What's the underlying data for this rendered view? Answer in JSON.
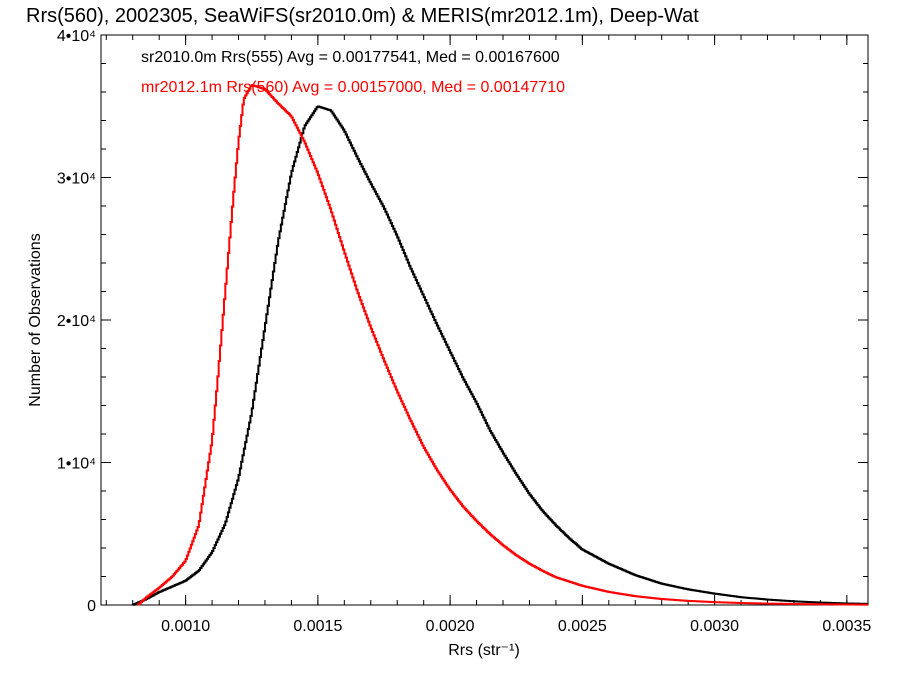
{
  "chart_data": {
    "type": "line",
    "title": "Rrs(560), 2002305, SeaWiFS(sr2010.0m) & MERIS(mr2012.1m), Deep-Wat",
    "xlabel": "Rrs (str⁻¹)",
    "ylabel": "Number of Observations",
    "xlim": [
      0.00068,
      0.00358
    ],
    "ylim": [
      0,
      40000
    ],
    "x_ticks": [
      0.001,
      0.0015,
      0.002,
      0.0025,
      0.003,
      0.0035
    ],
    "x_tick_labels": [
      "0.0010",
      "0.0015",
      "0.0020",
      "0.0025",
      "0.0030",
      "0.0035"
    ],
    "y_ticks": [
      0,
      10000,
      20000,
      30000,
      40000
    ],
    "y_tick_labels": [
      "0",
      "1•10⁴",
      "2•10⁴",
      "3•10⁴",
      "4•10⁴"
    ],
    "grid": false,
    "legend_position": "top-left",
    "series": [
      {
        "name": "sr2010.0m Rrs(555) Avg = 0.00177541, Med = 0.00167600",
        "color": "#000000",
        "points": [
          [
            0.0008,
            0
          ],
          [
            0.00085,
            400
          ],
          [
            0.0009,
            900
          ],
          [
            0.00095,
            1300
          ],
          [
            0.001,
            1700
          ],
          [
            0.00105,
            2400
          ],
          [
            0.0011,
            3700
          ],
          [
            0.00115,
            5700
          ],
          [
            0.0012,
            8900
          ],
          [
            0.00125,
            13500
          ],
          [
            0.0013,
            19500
          ],
          [
            0.00135,
            25500
          ],
          [
            0.0014,
            30300
          ],
          [
            0.00145,
            33600
          ],
          [
            0.0015,
            35000
          ],
          [
            0.00155,
            34700
          ],
          [
            0.0016,
            33300
          ],
          [
            0.00165,
            31400
          ],
          [
            0.0017,
            29600
          ],
          [
            0.00175,
            27900
          ],
          [
            0.0018,
            25900
          ],
          [
            0.00185,
            23700
          ],
          [
            0.0019,
            21700
          ],
          [
            0.00195,
            19700
          ],
          [
            0.002,
            17800
          ],
          [
            0.00205,
            15900
          ],
          [
            0.0021,
            14200
          ],
          [
            0.00215,
            12300
          ],
          [
            0.0022,
            10700
          ],
          [
            0.00225,
            9200
          ],
          [
            0.0023,
            7800
          ],
          [
            0.00235,
            6600
          ],
          [
            0.0024,
            5600
          ],
          [
            0.00245,
            4700
          ],
          [
            0.0025,
            3900
          ],
          [
            0.0026,
            2900
          ],
          [
            0.0027,
            2100
          ],
          [
            0.0028,
            1500
          ],
          [
            0.0029,
            1100
          ],
          [
            0.003,
            800
          ],
          [
            0.0031,
            550
          ],
          [
            0.0032,
            380
          ],
          [
            0.0033,
            260
          ],
          [
            0.0034,
            170
          ],
          [
            0.0035,
            110
          ],
          [
            0.00358,
            80
          ]
        ]
      },
      {
        "name": "mr2012.1m Rrs(560) Avg = 0.00157000, Med = 0.00147710",
        "color": "#ff0000",
        "points": [
          [
            0.00082,
            0
          ],
          [
            0.00085,
            500
          ],
          [
            0.0009,
            1200
          ],
          [
            0.00095,
            2000
          ],
          [
            0.001,
            3100
          ],
          [
            0.00105,
            5600
          ],
          [
            0.0011,
            11500
          ],
          [
            0.00112,
            15500
          ],
          [
            0.00115,
            22000
          ],
          [
            0.00118,
            28500
          ],
          [
            0.0012,
            32500
          ],
          [
            0.00122,
            35500
          ],
          [
            0.00125,
            36500
          ],
          [
            0.0013,
            36200
          ],
          [
            0.00135,
            35200
          ],
          [
            0.0014,
            34300
          ],
          [
            0.00145,
            32500
          ],
          [
            0.0015,
            30300
          ],
          [
            0.00155,
            27700
          ],
          [
            0.0016,
            24800
          ],
          [
            0.00165,
            22000
          ],
          [
            0.0017,
            19500
          ],
          [
            0.00175,
            17200
          ],
          [
            0.0018,
            15000
          ],
          [
            0.00185,
            13000
          ],
          [
            0.0019,
            11100
          ],
          [
            0.00195,
            9500
          ],
          [
            0.002,
            8100
          ],
          [
            0.00205,
            6900
          ],
          [
            0.0021,
            5900
          ],
          [
            0.00215,
            5000
          ],
          [
            0.0022,
            4200
          ],
          [
            0.00225,
            3500
          ],
          [
            0.0023,
            2900
          ],
          [
            0.00235,
            2400
          ],
          [
            0.0024,
            1950
          ],
          [
            0.0025,
            1350
          ],
          [
            0.0026,
            920
          ],
          [
            0.0027,
            620
          ],
          [
            0.0028,
            420
          ],
          [
            0.0029,
            290
          ],
          [
            0.003,
            200
          ],
          [
            0.0031,
            140
          ],
          [
            0.0032,
            100
          ],
          [
            0.0033,
            70
          ],
          [
            0.0034,
            50
          ],
          [
            0.0035,
            35
          ],
          [
            0.00358,
            25
          ]
        ]
      }
    ]
  }
}
